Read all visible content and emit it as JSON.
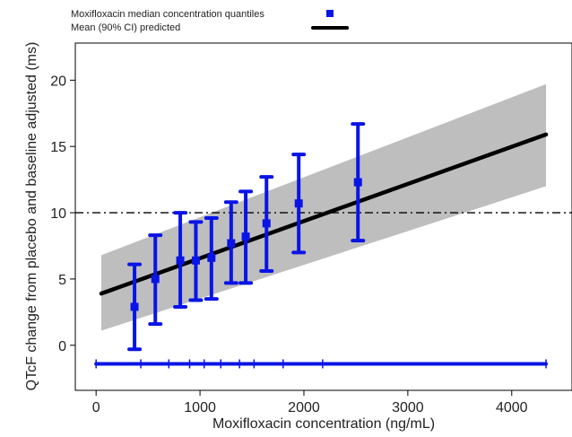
{
  "chart_data": {
    "type": "scatter",
    "title": "",
    "xlabel": "Moxifloxacin concentration (ng/mL)",
    "ylabel": "QTcF change from placebo and baseline adjusted (ms)",
    "xlim": [
      -200,
      4580
    ],
    "ylim": [
      -3.4,
      22.8
    ],
    "xticks": [
      0,
      1000,
      2000,
      3000,
      4000
    ],
    "yticks": [
      0,
      5,
      10,
      15,
      20
    ],
    "grid": false,
    "legend_position": "top",
    "legend": [
      {
        "label": "Moxifloxacin median concentration quantiles",
        "marker": "square"
      },
      {
        "label": "Mean (90% CI) predicted",
        "marker": "line"
      }
    ],
    "colors": {
      "observed": "#0a14e6",
      "predicted": "#000000",
      "ci_band": "#bebebe",
      "threshold": "#000000"
    },
    "threshold_line": {
      "y": 10,
      "style": "dash-dot"
    },
    "prediction": {
      "name": "Mean (90% CI) predicted",
      "x": [
        50,
        4330
      ],
      "mean": [
        3.9,
        15.9
      ],
      "lower": [
        1.1,
        12.0
      ],
      "upper": [
        6.8,
        19.7
      ]
    },
    "series": [
      {
        "name": "Moxifloxacin median concentration quantiles",
        "points": [
          {
            "x": 370,
            "y": 2.9,
            "lower": -0.3,
            "upper": 6.1
          },
          {
            "x": 570,
            "y": 5.0,
            "lower": 1.6,
            "upper": 8.3
          },
          {
            "x": 810,
            "y": 6.4,
            "lower": 2.9,
            "upper": 10.0
          },
          {
            "x": 960,
            "y": 6.4,
            "lower": 3.4,
            "upper": 9.3
          },
          {
            "x": 1110,
            "y": 6.6,
            "lower": 3.5,
            "upper": 9.6
          },
          {
            "x": 1300,
            "y": 7.7,
            "lower": 4.7,
            "upper": 10.8
          },
          {
            "x": 1440,
            "y": 8.2,
            "lower": 4.7,
            "upper": 11.6
          },
          {
            "x": 1640,
            "y": 9.2,
            "lower": 5.6,
            "upper": 12.7
          },
          {
            "x": 1950,
            "y": 10.7,
            "lower": 7.0,
            "upper": 14.4
          },
          {
            "x": 2520,
            "y": 12.3,
            "lower": 7.9,
            "upper": 16.7
          }
        ]
      }
    ],
    "quantile_bins": {
      "y": -1.4,
      "range": [
        0,
        4330
      ],
      "tick_x": [
        0,
        430,
        700,
        900,
        1040,
        1200,
        1380,
        1520,
        1800,
        2180,
        4330
      ]
    }
  }
}
